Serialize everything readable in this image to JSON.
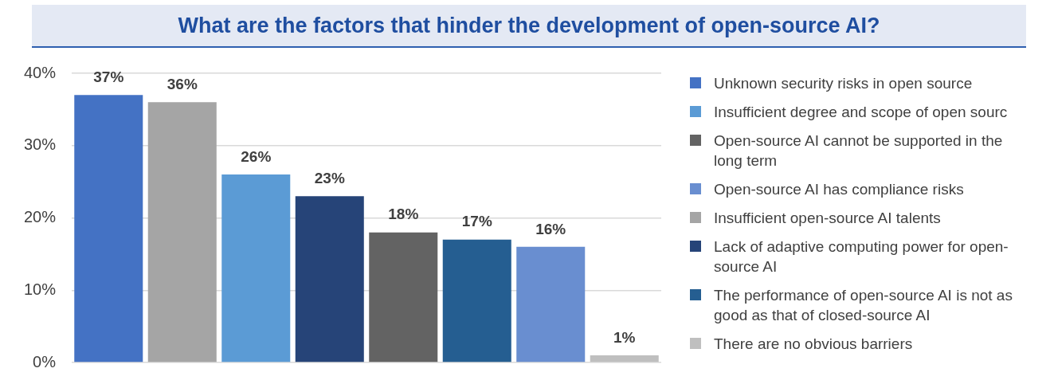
{
  "chart_data": {
    "type": "bar",
    "title": "What are the factors that hinder the development of open-source AI?",
    "categories": [
      null,
      null,
      null,
      null,
      null,
      null,
      null,
      null
    ],
    "series": [
      {
        "name": "Unknown security risks in open source",
        "color": "#4472c4",
        "values": [
          37,
          null,
          null,
          null,
          null,
          null,
          null,
          null
        ],
        "value_labels": [
          "37%",
          null,
          null,
          null,
          null,
          null,
          null,
          null
        ]
      },
      {
        "name": "Insufficient degree and scope of open sourc",
        "color": "#5b9bd5",
        "values": [
          null,
          null,
          26,
          null,
          null,
          null,
          null,
          null
        ],
        "value_labels": [
          null,
          null,
          "26%",
          null,
          null,
          null,
          null,
          null
        ]
      },
      {
        "name": "Open-source AI cannot be supported in the long term",
        "color": "#636363",
        "values": [
          null,
          null,
          null,
          null,
          18,
          null,
          null,
          null
        ],
        "value_labels": [
          null,
          null,
          null,
          null,
          "18%",
          null,
          null,
          null
        ]
      },
      {
        "name": "Open-source AI has compliance risks",
        "color": "#698ed0",
        "values": [
          null,
          null,
          null,
          null,
          null,
          null,
          16,
          null
        ],
        "value_labels": [
          null,
          null,
          null,
          null,
          null,
          null,
          "16%",
          null
        ]
      },
      {
        "name": "Insufficient open-source AI talents",
        "color": "#a5a5a5",
        "values": [
          null,
          36,
          null,
          null,
          null,
          null,
          null,
          null
        ],
        "value_labels": [
          null,
          "36%",
          null,
          null,
          null,
          null,
          null,
          null
        ]
      },
      {
        "name": "Lack of adaptive computing power for open-source AI",
        "color": "#264478",
        "values": [
          null,
          null,
          null,
          23,
          null,
          null,
          null,
          null
        ],
        "value_labels": [
          null,
          null,
          null,
          "23%",
          null,
          null,
          null,
          null
        ]
      },
      {
        "name": "The performance of open-source AI is not as good as that of closed-source AI",
        "color": "#255e91",
        "values": [
          null,
          null,
          null,
          null,
          null,
          17,
          null,
          null
        ],
        "value_labels": [
          null,
          null,
          null,
          null,
          null,
          "17%",
          null,
          null
        ]
      },
      {
        "name": "There are no obvious barriers",
        "color": "#bfbfbf",
        "values": [
          null,
          null,
          null,
          null,
          null,
          null,
          null,
          1
        ],
        "value_labels": [
          null,
          null,
          null,
          null,
          null,
          null,
          null,
          "1%"
        ]
      }
    ],
    "ylim": [
      0,
      40
    ],
    "yticks": [
      {
        "value": 0,
        "label": "0%"
      },
      {
        "value": 10,
        "label": "10%"
      },
      {
        "value": 20,
        "label": "20%"
      },
      {
        "value": 30,
        "label": "30%"
      },
      {
        "value": 40,
        "label": "40%"
      }
    ],
    "grid": "y",
    "legend": "right"
  }
}
